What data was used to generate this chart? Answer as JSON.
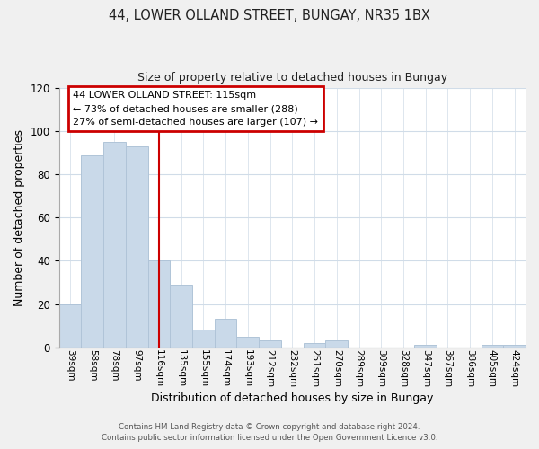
{
  "title1": "44, LOWER OLLAND STREET, BUNGAY, NR35 1BX",
  "title2": "Size of property relative to detached houses in Bungay",
  "xlabel": "Distribution of detached houses by size in Bungay",
  "ylabel": "Number of detached properties",
  "categories": [
    "39sqm",
    "58sqm",
    "78sqm",
    "97sqm",
    "116sqm",
    "135sqm",
    "155sqm",
    "174sqm",
    "193sqm",
    "212sqm",
    "232sqm",
    "251sqm",
    "270sqm",
    "289sqm",
    "309sqm",
    "328sqm",
    "347sqm",
    "367sqm",
    "386sqm",
    "405sqm",
    "424sqm"
  ],
  "values": [
    20,
    89,
    95,
    93,
    40,
    29,
    8,
    13,
    5,
    3,
    0,
    2,
    3,
    0,
    0,
    0,
    1,
    0,
    0,
    1,
    1
  ],
  "bar_color": "#c9d9e9",
  "bar_edge_color": "#b0c4d8",
  "vline_x": 4,
  "vline_color": "#cc0000",
  "ylim": [
    0,
    120
  ],
  "yticks": [
    0,
    20,
    40,
    60,
    80,
    100,
    120
  ],
  "annotation_line1": "44 LOWER OLLAND STREET: 115sqm",
  "annotation_line2": "← 73% of detached houses are smaller (288)",
  "annotation_line3": "27% of semi-detached houses are larger (107) →",
  "footer1": "Contains HM Land Registry data © Crown copyright and database right 2024.",
  "footer2": "Contains public sector information licensed under the Open Government Licence v3.0.",
  "background_color": "#f0f0f0",
  "plot_bg_color": "#ffffff",
  "grid_color": "#d0dce8"
}
